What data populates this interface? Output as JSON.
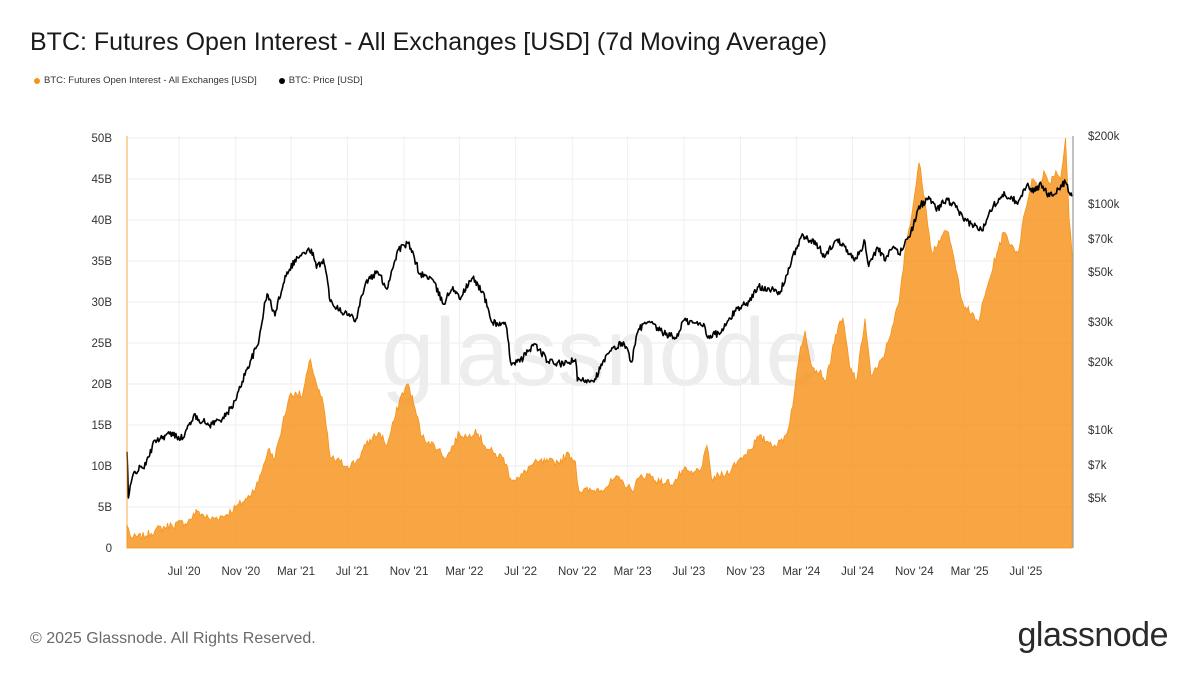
{
  "header": {
    "title": "BTC: Futures Open Interest - All Exchanges [USD] (7d Moving Average)"
  },
  "legend": [
    {
      "label": "BTC: Futures Open Interest - All Exchanges [USD]",
      "color": "#f7931a"
    },
    {
      "label": "BTC: Price [USD]",
      "color": "#000000"
    }
  ],
  "watermark": "glassnode",
  "footer": {
    "copyright": "© 2025 Glassnode. All Rights Reserved.",
    "logo": "glassnode"
  },
  "chart_data": {
    "type": "area",
    "x_ticks": [
      "Jul '20",
      "Nov '20",
      "Mar '21",
      "Jul '21",
      "Nov '21",
      "Mar '22",
      "Jul '22",
      "Nov '22",
      "Mar '23",
      "Jul '23",
      "Nov '23",
      "Mar '24",
      "Jul '24",
      "Nov '24",
      "Mar '25",
      "Jul '25"
    ],
    "x_range": [
      "2020-03-10",
      "2025-10-20"
    ],
    "y_left": {
      "ticks": [
        "0",
        "5B",
        "10B",
        "15B",
        "20B",
        "25B",
        "30B",
        "35B",
        "40B",
        "45B",
        "50B"
      ],
      "min": 0,
      "max": 50,
      "unit": "B USD",
      "scale": "linear"
    },
    "y_right": {
      "ticks": [
        "$5k",
        "$7k",
        "$10k",
        "$20k",
        "$30k",
        "$50k",
        "$70k",
        "$100k",
        "$200k"
      ],
      "tick_values": [
        5000,
        7000,
        10000,
        20000,
        30000,
        50000,
        70000,
        100000,
        200000
      ],
      "scale": "log"
    },
    "grid": true,
    "legend_position": "top-left",
    "series": [
      {
        "name": "BTC: Futures Open Interest - All Exchanges [USD]",
        "axis": "left",
        "style": "area",
        "color": "#f7931a",
        "unit": "B USD",
        "points": [
          [
            "2020-03-10",
            2.8
          ],
          [
            "2020-03-20",
            1.2
          ],
          [
            "2020-04-20",
            1.5
          ],
          [
            "2020-05-10",
            2.2
          ],
          [
            "2020-06-15",
            2.8
          ],
          [
            "2020-07-20",
            3.2
          ],
          [
            "2020-08-10",
            4.5
          ],
          [
            "2020-09-05",
            3.5
          ],
          [
            "2020-10-10",
            4.0
          ],
          [
            "2020-11-01",
            5.0
          ],
          [
            "2020-11-25",
            6.0
          ],
          [
            "2020-12-20",
            8.0
          ],
          [
            "2021-01-10",
            12.0
          ],
          [
            "2021-01-25",
            11.0
          ],
          [
            "2021-02-10",
            15.0
          ],
          [
            "2021-02-25",
            18.5
          ],
          [
            "2021-03-10",
            19.0
          ],
          [
            "2021-03-25",
            18.5
          ],
          [
            "2021-04-12",
            23.0
          ],
          [
            "2021-04-25",
            20.0
          ],
          [
            "2021-05-10",
            17.5
          ],
          [
            "2021-05-25",
            11.0
          ],
          [
            "2021-06-15",
            10.5
          ],
          [
            "2021-07-01",
            10.0
          ],
          [
            "2021-07-20",
            10.5
          ],
          [
            "2021-08-10",
            12.5
          ],
          [
            "2021-08-25",
            13.5
          ],
          [
            "2021-09-10",
            14.0
          ],
          [
            "2021-09-25",
            12.5
          ],
          [
            "2021-10-10",
            15.5
          ],
          [
            "2021-10-25",
            18.5
          ],
          [
            "2021-11-10",
            20.0
          ],
          [
            "2021-11-25",
            17.0
          ],
          [
            "2021-12-10",
            13.5
          ],
          [
            "2021-12-25",
            13.0
          ],
          [
            "2022-01-15",
            12.0
          ],
          [
            "2022-02-01",
            11.0
          ],
          [
            "2022-02-15",
            12.5
          ],
          [
            "2022-03-01",
            14.0
          ],
          [
            "2022-03-20",
            13.5
          ],
          [
            "2022-04-05",
            14.5
          ],
          [
            "2022-04-25",
            12.5
          ],
          [
            "2022-05-15",
            11.5
          ],
          [
            "2022-06-05",
            11.0
          ],
          [
            "2022-06-20",
            8.5
          ],
          [
            "2022-07-10",
            8.5
          ],
          [
            "2022-08-01",
            10.0
          ],
          [
            "2022-08-20",
            10.5
          ],
          [
            "2022-09-10",
            10.5
          ],
          [
            "2022-10-01",
            10.5
          ],
          [
            "2022-10-25",
            11.5
          ],
          [
            "2022-11-08",
            10.5
          ],
          [
            "2022-11-15",
            7.0
          ],
          [
            "2022-12-15",
            7.0
          ],
          [
            "2023-01-15",
            7.5
          ],
          [
            "2023-02-01",
            8.5
          ],
          [
            "2023-02-20",
            8.0
          ],
          [
            "2023-03-10",
            7.0
          ],
          [
            "2023-03-25",
            8.5
          ],
          [
            "2023-04-15",
            9.0
          ],
          [
            "2023-05-10",
            8.0
          ],
          [
            "2023-06-10",
            8.0
          ],
          [
            "2023-06-30",
            9.5
          ],
          [
            "2023-07-20",
            9.0
          ],
          [
            "2023-08-10",
            10.0
          ],
          [
            "2023-08-20",
            12.5
          ],
          [
            "2023-08-30",
            8.5
          ],
          [
            "2023-09-30",
            9.0
          ],
          [
            "2023-10-25",
            10.5
          ],
          [
            "2023-11-20",
            12.0
          ],
          [
            "2023-12-10",
            13.5
          ],
          [
            "2023-12-30",
            13.0
          ],
          [
            "2024-01-20",
            12.5
          ],
          [
            "2024-02-10",
            14.0
          ],
          [
            "2024-02-25",
            18.5
          ],
          [
            "2024-03-10",
            24.5
          ],
          [
            "2024-03-20",
            26.5
          ],
          [
            "2024-04-05",
            22.0
          ],
          [
            "2024-04-20",
            21.5
          ],
          [
            "2024-05-05",
            20.5
          ],
          [
            "2024-05-25",
            26.0
          ],
          [
            "2024-06-10",
            28.0
          ],
          [
            "2024-06-25",
            22.0
          ],
          [
            "2024-07-10",
            20.5
          ],
          [
            "2024-07-28",
            28.0
          ],
          [
            "2024-08-10",
            21.0
          ],
          [
            "2024-08-25",
            22.0
          ],
          [
            "2024-09-10",
            24.0
          ],
          [
            "2024-09-25",
            27.0
          ],
          [
            "2024-10-10",
            30.0
          ],
          [
            "2024-10-25",
            37.0
          ],
          [
            "2024-11-10",
            42.0
          ],
          [
            "2024-11-22",
            47.0
          ],
          [
            "2024-12-05",
            42.5
          ],
          [
            "2024-12-20",
            36.0
          ],
          [
            "2025-01-10",
            38.0
          ],
          [
            "2025-01-25",
            38.5
          ],
          [
            "2025-02-10",
            34.0
          ],
          [
            "2025-02-25",
            30.0
          ],
          [
            "2025-03-15",
            28.5
          ],
          [
            "2025-03-30",
            27.5
          ],
          [
            "2025-04-20",
            32.0
          ],
          [
            "2025-05-10",
            36.0
          ],
          [
            "2025-05-25",
            38.5
          ],
          [
            "2025-06-10",
            37.0
          ],
          [
            "2025-06-25",
            36.0
          ],
          [
            "2025-07-10",
            41.0
          ],
          [
            "2025-07-25",
            45.0
          ],
          [
            "2025-08-10",
            44.0
          ],
          [
            "2025-08-20",
            46.0
          ],
          [
            "2025-09-01",
            44.5
          ],
          [
            "2025-09-15",
            46.0
          ],
          [
            "2025-09-25",
            45.0
          ],
          [
            "2025-10-06",
            50.0
          ],
          [
            "2025-10-14",
            40.0
          ],
          [
            "2025-10-20",
            36.0
          ]
        ]
      },
      {
        "name": "BTC: Price [USD]",
        "axis": "right",
        "style": "line",
        "color": "#000000",
        "unit": "USD",
        "points": [
          [
            "2020-03-10",
            8000
          ],
          [
            "2020-03-13",
            5000
          ],
          [
            "2020-03-25",
            6500
          ],
          [
            "2020-04-20",
            7000
          ],
          [
            "2020-05-10",
            9000
          ],
          [
            "2020-06-10",
            9600
          ],
          [
            "2020-07-10",
            9200
          ],
          [
            "2020-08-01",
            11500
          ],
          [
            "2020-09-05",
            10500
          ],
          [
            "2020-10-10",
            11500
          ],
          [
            "2020-11-01",
            13500
          ],
          [
            "2020-11-25",
            18500
          ],
          [
            "2020-12-20",
            24000
          ],
          [
            "2021-01-08",
            40000
          ],
          [
            "2021-01-25",
            32000
          ],
          [
            "2021-02-20",
            50000
          ],
          [
            "2021-03-15",
            58000
          ],
          [
            "2021-04-14",
            63000
          ],
          [
            "2021-04-25",
            52000
          ],
          [
            "2021-05-10",
            57000
          ],
          [
            "2021-05-25",
            37000
          ],
          [
            "2021-06-25",
            33000
          ],
          [
            "2021-07-20",
            31000
          ],
          [
            "2021-08-10",
            45000
          ],
          [
            "2021-09-05",
            50000
          ],
          [
            "2021-09-25",
            42000
          ],
          [
            "2021-10-20",
            63000
          ],
          [
            "2021-11-10",
            67000
          ],
          [
            "2021-12-05",
            49000
          ],
          [
            "2021-12-30",
            47000
          ],
          [
            "2022-01-25",
            36000
          ],
          [
            "2022-02-15",
            43000
          ],
          [
            "2022-03-01",
            38000
          ],
          [
            "2022-03-30",
            47000
          ],
          [
            "2022-04-20",
            41000
          ],
          [
            "2022-05-10",
            30000
          ],
          [
            "2022-06-10",
            29000
          ],
          [
            "2022-06-20",
            20000
          ],
          [
            "2022-07-10",
            20000
          ],
          [
            "2022-08-10",
            24000
          ],
          [
            "2022-09-10",
            20000
          ],
          [
            "2022-10-15",
            19500
          ],
          [
            "2022-11-08",
            20500
          ],
          [
            "2022-11-12",
            16500
          ],
          [
            "2022-12-20",
            16800
          ],
          [
            "2023-01-20",
            22000
          ],
          [
            "2023-02-20",
            24500
          ],
          [
            "2023-03-10",
            20000
          ],
          [
            "2023-03-25",
            28000
          ],
          [
            "2023-04-15",
            30000
          ],
          [
            "2023-05-15",
            27000
          ],
          [
            "2023-06-15",
            25500
          ],
          [
            "2023-06-30",
            30500
          ],
          [
            "2023-07-20",
            29800
          ],
          [
            "2023-08-15",
            29000
          ],
          [
            "2023-08-20",
            26000
          ],
          [
            "2023-09-20",
            27000
          ],
          [
            "2023-10-25",
            34500
          ],
          [
            "2023-11-20",
            37000
          ],
          [
            "2023-12-10",
            43000
          ],
          [
            "2023-12-30",
            42500
          ],
          [
            "2024-01-25",
            40000
          ],
          [
            "2024-02-15",
            52000
          ],
          [
            "2024-03-12",
            72000
          ],
          [
            "2024-04-01",
            69000
          ],
          [
            "2024-04-20",
            64000
          ],
          [
            "2024-05-01",
            58000
          ],
          [
            "2024-05-25",
            69000
          ],
          [
            "2024-06-10",
            67000
          ],
          [
            "2024-07-05",
            56000
          ],
          [
            "2024-07-28",
            68000
          ],
          [
            "2024-08-05",
            53000
          ],
          [
            "2024-08-25",
            64000
          ],
          [
            "2024-09-10",
            56000
          ],
          [
            "2024-09-28",
            65000
          ],
          [
            "2024-10-10",
            60000
          ],
          [
            "2024-10-28",
            70000
          ],
          [
            "2024-11-10",
            80000
          ],
          [
            "2024-11-22",
            98000
          ],
          [
            "2024-12-17",
            106000
          ],
          [
            "2024-12-30",
            93000
          ],
          [
            "2025-01-20",
            105000
          ],
          [
            "2025-02-10",
            97000
          ],
          [
            "2025-02-28",
            84000
          ],
          [
            "2025-03-15",
            82000
          ],
          [
            "2025-04-08",
            76000
          ],
          [
            "2025-04-25",
            94000
          ],
          [
            "2025-05-22",
            110000
          ],
          [
            "2025-06-10",
            108000
          ],
          [
            "2025-06-22",
            101000
          ],
          [
            "2025-07-14",
            121000
          ],
          [
            "2025-08-01",
            114000
          ],
          [
            "2025-08-14",
            123000
          ],
          [
            "2025-09-01",
            108000
          ],
          [
            "2025-09-20",
            116000
          ],
          [
            "2025-10-06",
            125000
          ],
          [
            "2025-10-14",
            112000
          ],
          [
            "2025-10-20",
            108000
          ]
        ]
      }
    ]
  }
}
